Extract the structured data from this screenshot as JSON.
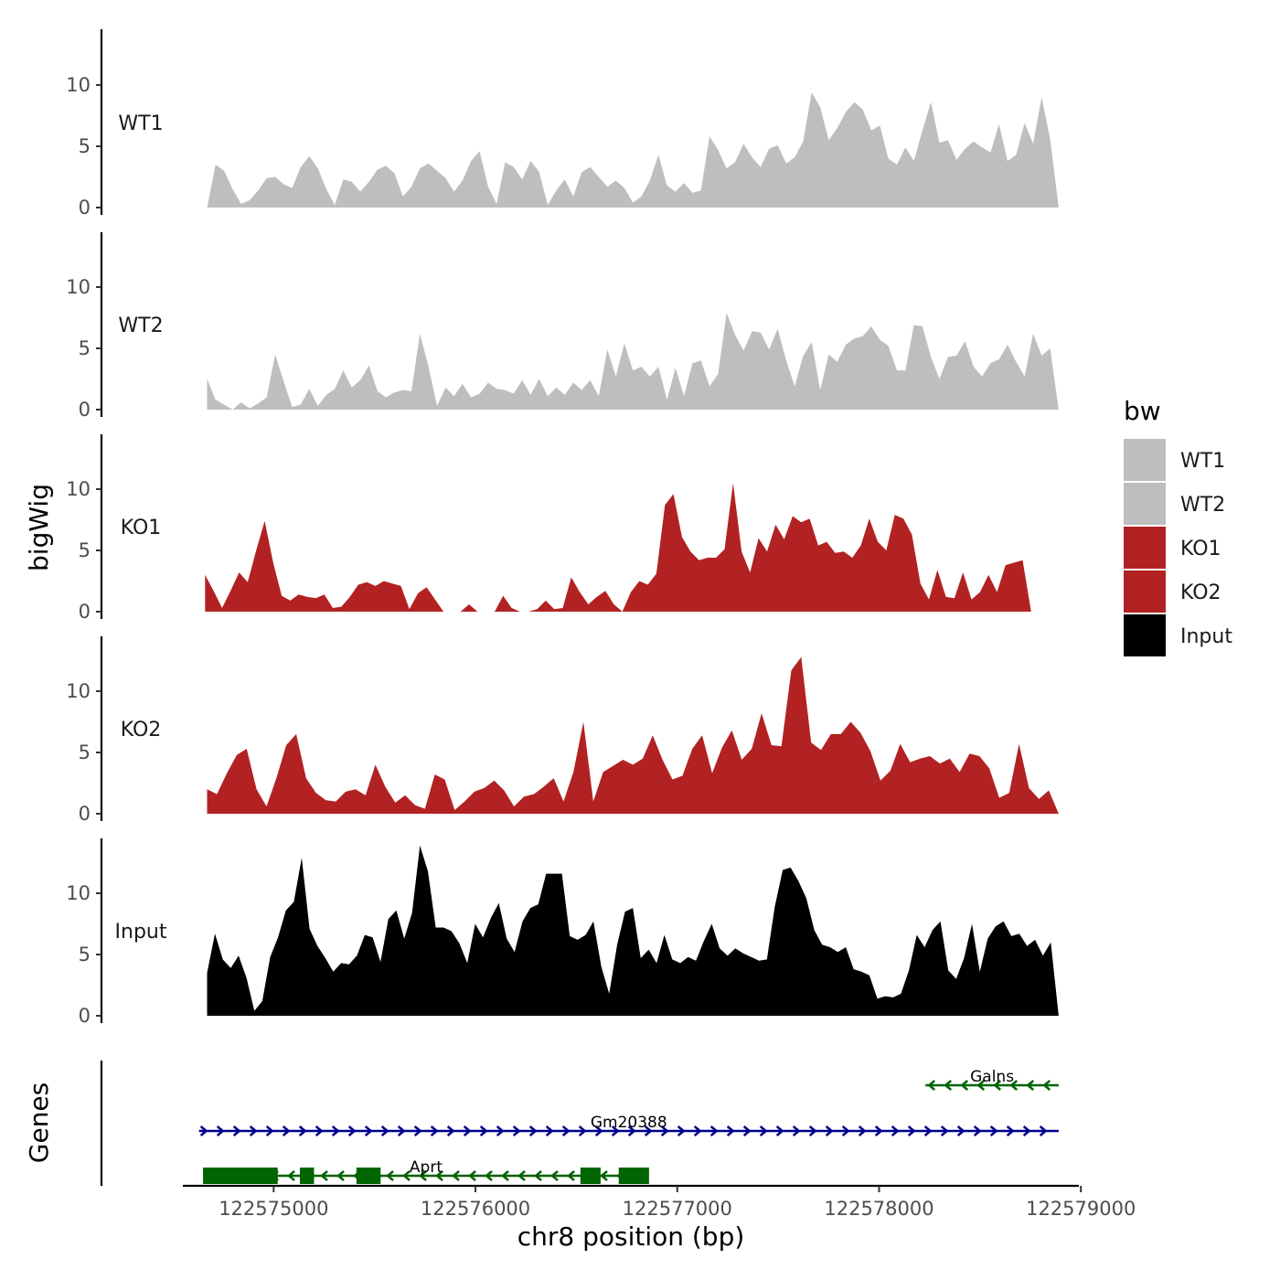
{
  "chart_data": {
    "type": "area",
    "title": "",
    "ylabel": "bigWig",
    "genes_label": "Genes",
    "xlabel": "chr8 position (bp)",
    "xlim": [
      122574550,
      122578990
    ],
    "xticks": [
      122575000,
      122576000,
      122577000,
      122578000,
      122579000
    ],
    "xtick_labels": [
      "122575000",
      "122576000",
      "122577000",
      "122578000",
      "122579000"
    ],
    "ylim": [
      0,
      14.5
    ],
    "yticks": [
      0,
      5,
      10
    ],
    "ytick_labels": [
      "0",
      "5",
      "10"
    ],
    "legend": {
      "title": "bw",
      "position": "right",
      "entries": [
        {
          "label": "WT1",
          "color": "#bebebe"
        },
        {
          "label": "WT2",
          "color": "#bebebe"
        },
        {
          "label": "KO1",
          "color": "#b22222"
        },
        {
          "label": "KO2",
          "color": "#b22222"
        },
        {
          "label": "Input",
          "color": "#000000"
        }
      ]
    },
    "series": [
      {
        "name": "WT1",
        "color": "#bebebe",
        "x_start": 122574670,
        "x_end": 122578890,
        "values": [
          0,
          3.5,
          3.0,
          1.5,
          0.3,
          0.6,
          1.4,
          2.4,
          2.5,
          1.9,
          1.6,
          3.3,
          4.2,
          3.2,
          1.5,
          0.2,
          2.3,
          2.1,
          1.3,
          2.1,
          3.1,
          3.4,
          2.8,
          0.9,
          1.7,
          3.2,
          3.6,
          3.0,
          2.4,
          1.3,
          2.2,
          3.8,
          4.6,
          1.7,
          0.3,
          3.7,
          3.3,
          2.3,
          3.8,
          2.9,
          0.2,
          1.4,
          2.3,
          0.9,
          2.9,
          3.3,
          2.5,
          1.7,
          2.2,
          1.6,
          0.4,
          0.9,
          2.2,
          4.3,
          1.8,
          1.3,
          2.0,
          1.2,
          1.4,
          5.8,
          4.7,
          3.2,
          3.7,
          5.2,
          4.1,
          3.3,
          4.8,
          5.1,
          3.6,
          4.1,
          5.4,
          9.4,
          8.2,
          5.5,
          6.5,
          7.8,
          8.6,
          8.0,
          6.3,
          6.7,
          4.0,
          3.5,
          4.9,
          3.8,
          6.3,
          8.6,
          5.3,
          5.5,
          3.9,
          4.8,
          5.4,
          4.9,
          4.5,
          6.8,
          3.8,
          4.3,
          6.9,
          5.2,
          9.0,
          5.6,
          0
        ]
      },
      {
        "name": "WT2",
        "color": "#bebebe",
        "x_start": 122574670,
        "x_end": 122578890,
        "values": [
          2.5,
          0.8,
          0.4,
          0.0,
          0.6,
          0.1,
          0.5,
          1.0,
          4.5,
          2.3,
          0.2,
          0.4,
          1.7,
          0.3,
          1.2,
          1.7,
          3.2,
          1.8,
          2.4,
          3.6,
          1.5,
          1.0,
          1.4,
          1.6,
          1.5,
          6.2,
          3.5,
          0.3,
          1.8,
          1.1,
          2.1,
          1.0,
          1.3,
          2.2,
          1.7,
          1.6,
          1.3,
          2.4,
          1.2,
          2.5,
          1.1,
          1.8,
          1.2,
          2.2,
          1.6,
          2.4,
          1.1,
          4.9,
          2.7,
          5.4,
          3.2,
          3.5,
          2.7,
          3.5,
          0.8,
          3.4,
          1.1,
          3.8,
          4.0,
          1.9,
          2.9,
          7.9,
          6.1,
          4.8,
          6.4,
          6.3,
          4.9,
          6.6,
          4.0,
          1.9,
          4.4,
          5.5,
          1.6,
          4.5,
          3.9,
          5.3,
          5.8,
          6.0,
          6.8,
          5.7,
          5.2,
          3.2,
          3.2,
          6.9,
          6.8,
          4.3,
          2.5,
          4.3,
          4.4,
          5.6,
          3.5,
          2.7,
          3.8,
          4.1,
          5.3,
          3.9,
          2.7,
          6.2,
          4.4,
          5.0,
          0
        ]
      },
      {
        "name": "KO1",
        "color": "#b22222",
        "x_start": 122574660,
        "x_end": 122578880,
        "values": [
          3.0,
          1.7,
          0.3,
          1.7,
          3.2,
          2.4,
          5.0,
          7.4,
          4.0,
          1.3,
          0.9,
          1.4,
          1.2,
          1.1,
          1.4,
          0.3,
          0.4,
          1.2,
          2.2,
          2.4,
          2.1,
          2.5,
          2.3,
          2.1,
          0.2,
          1.5,
          2.0,
          1.0,
          0.0,
          0.0,
          0.0,
          0.6,
          0.0,
          0.0,
          0.0,
          1.3,
          0.3,
          0.0,
          0.0,
          0.2,
          0.9,
          0.2,
          0.3,
          2.8,
          1.6,
          0.6,
          1.2,
          1.7,
          0.6,
          0.0,
          1.6,
          2.5,
          2.2,
          3.1,
          8.7,
          9.6,
          6.1,
          4.9,
          4.2,
          4.4,
          4.4,
          5.1,
          10.5,
          4.9,
          3.2,
          6.0,
          4.9,
          7.1,
          5.9,
          7.8,
          7.3,
          7.6,
          5.4,
          5.7,
          4.8,
          4.9,
          4.4,
          5.4,
          7.6,
          5.7,
          5.0,
          7.9,
          7.6,
          6.3,
          2.3,
          1.0,
          3.4,
          1.2,
          1.1,
          3.2,
          1.0,
          1.6,
          3.0,
          1.6,
          3.8,
          4.0,
          4.2,
          0,
          0,
          0,
          0
        ]
      },
      {
        "name": "KO2",
        "color": "#b22222",
        "x_start": 122574670,
        "x_end": 122578890,
        "values": [
          2.0,
          1.6,
          3.3,
          4.8,
          5.3,
          2.0,
          0.6,
          2.9,
          5.6,
          6.5,
          2.9,
          1.7,
          1.1,
          1.0,
          1.8,
          2.0,
          1.5,
          4.0,
          2.2,
          0.9,
          1.5,
          0.7,
          0.4,
          3.2,
          2.8,
          0.3,
          1.0,
          1.8,
          2.1,
          2.7,
          1.9,
          0.6,
          1.4,
          1.6,
          2.2,
          2.9,
          1.0,
          3.4,
          7.5,
          1.0,
          3.4,
          3.9,
          4.4,
          4.0,
          4.5,
          6.4,
          4.4,
          2.8,
          3.1,
          5.3,
          6.4,
          3.3,
          5.4,
          6.8,
          4.4,
          5.3,
          8.2,
          5.6,
          5.5,
          11.7,
          12.8,
          5.8,
          5.2,
          6.5,
          6.5,
          7.5,
          6.6,
          5.1,
          2.7,
          3.5,
          5.7,
          4.2,
          4.5,
          4.7,
          4.1,
          4.5,
          3.4,
          4.9,
          4.7,
          3.7,
          1.3,
          1.7,
          5.7,
          2.1,
          1.2,
          1.9,
          0
        ]
      },
      {
        "name": "Input",
        "color": "#000000",
        "x_start": 122574670,
        "x_end": 122578890,
        "values": [
          3.5,
          6.7,
          4.6,
          3.9,
          4.9,
          3.1,
          0.4,
          1.2,
          4.8,
          6.4,
          8.6,
          9.3,
          12.9,
          7.1,
          5.7,
          4.7,
          3.6,
          4.3,
          4.2,
          4.9,
          6.6,
          6.4,
          4.4,
          7.9,
          8.6,
          6.3,
          8.4,
          13.9,
          11.8,
          7.2,
          7.2,
          6.9,
          5.9,
          4.3,
          7.5,
          6.4,
          8.0,
          9.2,
          6.3,
          5.2,
          7.7,
          8.8,
          9.1,
          11.6,
          11.6,
          11.6,
          6.5,
          6.2,
          6.6,
          7.7,
          4.0,
          1.8,
          5.8,
          8.5,
          8.8,
          4.7,
          5.4,
          4.3,
          6.6,
          4.6,
          4.3,
          4.8,
          4.5,
          6.1,
          7.5,
          5.5,
          4.9,
          5.5,
          5.1,
          4.8,
          4.5,
          4.6,
          8.9,
          11.9,
          12.1,
          11.0,
          9.6,
          7.0,
          5.8,
          5.6,
          5.2,
          5.6,
          3.8,
          3.6,
          3.3,
          1.4,
          1.6,
          1.5,
          1.8,
          3.7,
          6.6,
          5.6,
          7.0,
          7.7,
          3.7,
          3.0,
          4.7,
          7.5,
          3.6,
          6.3,
          7.3,
          7.7,
          6.5,
          6.7,
          5.7,
          6.2,
          4.9,
          6.0,
          0
        ]
      }
    ],
    "genes": [
      {
        "name": "Galns",
        "strand": "-",
        "color": "#006400",
        "row": 0,
        "start": 122578230,
        "end": 122578890,
        "exons": []
      },
      {
        "name": "Gm20388",
        "strand": "+",
        "color": "#00008b",
        "row": 1,
        "start": 122574630,
        "end": 122578890,
        "exons": []
      },
      {
        "name": "Aprt",
        "strand": "-",
        "color": "#006400",
        "row": 2,
        "start": 122574650,
        "end": 122576860,
        "exons": [
          [
            122574650,
            122575020
          ],
          [
            122575130,
            122575200
          ],
          [
            122575410,
            122575530
          ],
          [
            122576520,
            122576620
          ],
          [
            122576710,
            122576860
          ]
        ]
      }
    ]
  }
}
